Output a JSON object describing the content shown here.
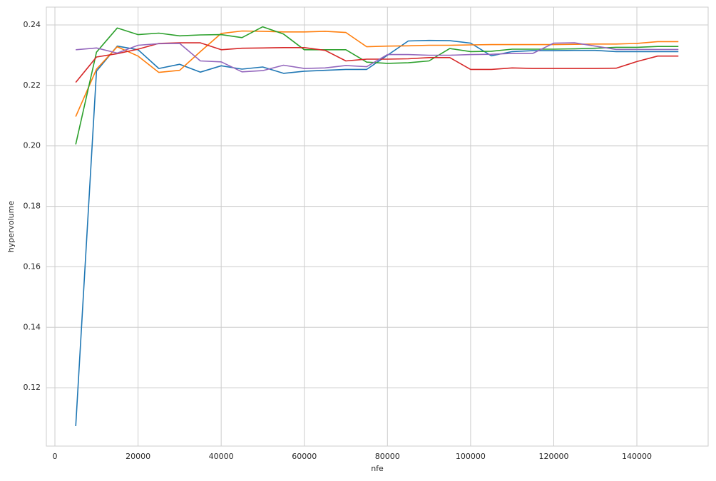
{
  "chart_data": {
    "type": "line",
    "x_label": "nfe",
    "y_label": "hypervolume",
    "x": [
      5000,
      10000,
      15000,
      20000,
      25000,
      30000,
      35000,
      40000,
      45000,
      50000,
      55000,
      60000,
      65000,
      70000,
      75000,
      80000,
      85000,
      90000,
      95000,
      100000,
      105000,
      110000,
      115000,
      120000,
      125000,
      130000,
      135000,
      140000,
      145000,
      150000
    ],
    "series": [
      {
        "color": "#1f77b4",
        "values": [
          0.1073,
          0.2247,
          0.233,
          0.2318,
          0.2256,
          0.227,
          0.2244,
          0.2265,
          0.2254,
          0.2261,
          0.224,
          0.2247,
          0.225,
          0.2253,
          0.2253,
          0.23,
          0.2347,
          0.2349,
          0.2348,
          0.234,
          0.2298,
          0.2312,
          0.2315,
          0.2315,
          0.2316,
          0.2316,
          0.2312,
          0.2312,
          0.2312,
          0.2312
        ]
      },
      {
        "color": "#ff7f0e",
        "values": [
          0.2097,
          0.2254,
          0.2328,
          0.2297,
          0.2243,
          0.225,
          0.2312,
          0.2372,
          0.238,
          0.2379,
          0.2377,
          0.2377,
          0.2379,
          0.2375,
          0.2328,
          0.233,
          0.2331,
          0.2333,
          0.2333,
          0.2334,
          0.2335,
          0.2335,
          0.2335,
          0.2335,
          0.2336,
          0.2337,
          0.2337,
          0.2339,
          0.2345,
          0.2345
        ]
      },
      {
        "color": "#2ca02c",
        "values": [
          0.2005,
          0.231,
          0.239,
          0.2368,
          0.2373,
          0.2364,
          0.2367,
          0.2368,
          0.2358,
          0.2394,
          0.237,
          0.2318,
          0.2318,
          0.2318,
          0.2277,
          0.2273,
          0.2275,
          0.2281,
          0.2322,
          0.2312,
          0.2313,
          0.232,
          0.232,
          0.232,
          0.2321,
          0.2323,
          0.2326,
          0.2326,
          0.2329,
          0.2329
        ]
      },
      {
        "color": "#d62728",
        "values": [
          0.221,
          0.2294,
          0.2305,
          0.232,
          0.2339,
          0.2341,
          0.2341,
          0.2318,
          0.2323,
          0.2324,
          0.2325,
          0.2325,
          0.2316,
          0.2281,
          0.2287,
          0.2287,
          0.2288,
          0.2292,
          0.2292,
          0.2253,
          0.2253,
          0.2258,
          0.2256,
          0.2256,
          0.2256,
          0.2256,
          0.2257,
          0.2279,
          0.2297,
          0.2297
        ]
      },
      {
        "color": "#9467bd",
        "values": [
          0.2318,
          0.2324,
          0.2307,
          0.2333,
          0.2338,
          0.2339,
          0.2281,
          0.2278,
          0.2245,
          0.2249,
          0.2267,
          0.2256,
          0.2258,
          0.2266,
          0.2262,
          0.2302,
          0.2302,
          0.23,
          0.23,
          0.2302,
          0.2303,
          0.2306,
          0.2306,
          0.234,
          0.2341,
          0.233,
          0.2319,
          0.2319,
          0.2319,
          0.2319
        ]
      }
    ],
    "xlim": [
      -2060,
      157150
    ],
    "xticks": [
      0,
      20000,
      40000,
      60000,
      80000,
      100000,
      120000,
      140000
    ],
    "ylim": [
      0.1007,
      0.2459
    ],
    "yticks": [
      0.12,
      0.14,
      0.16,
      0.18,
      {
        "value": 0.2,
        "label": "0.20"
      },
      0.22,
      0.24
    ],
    "grid": true
  }
}
